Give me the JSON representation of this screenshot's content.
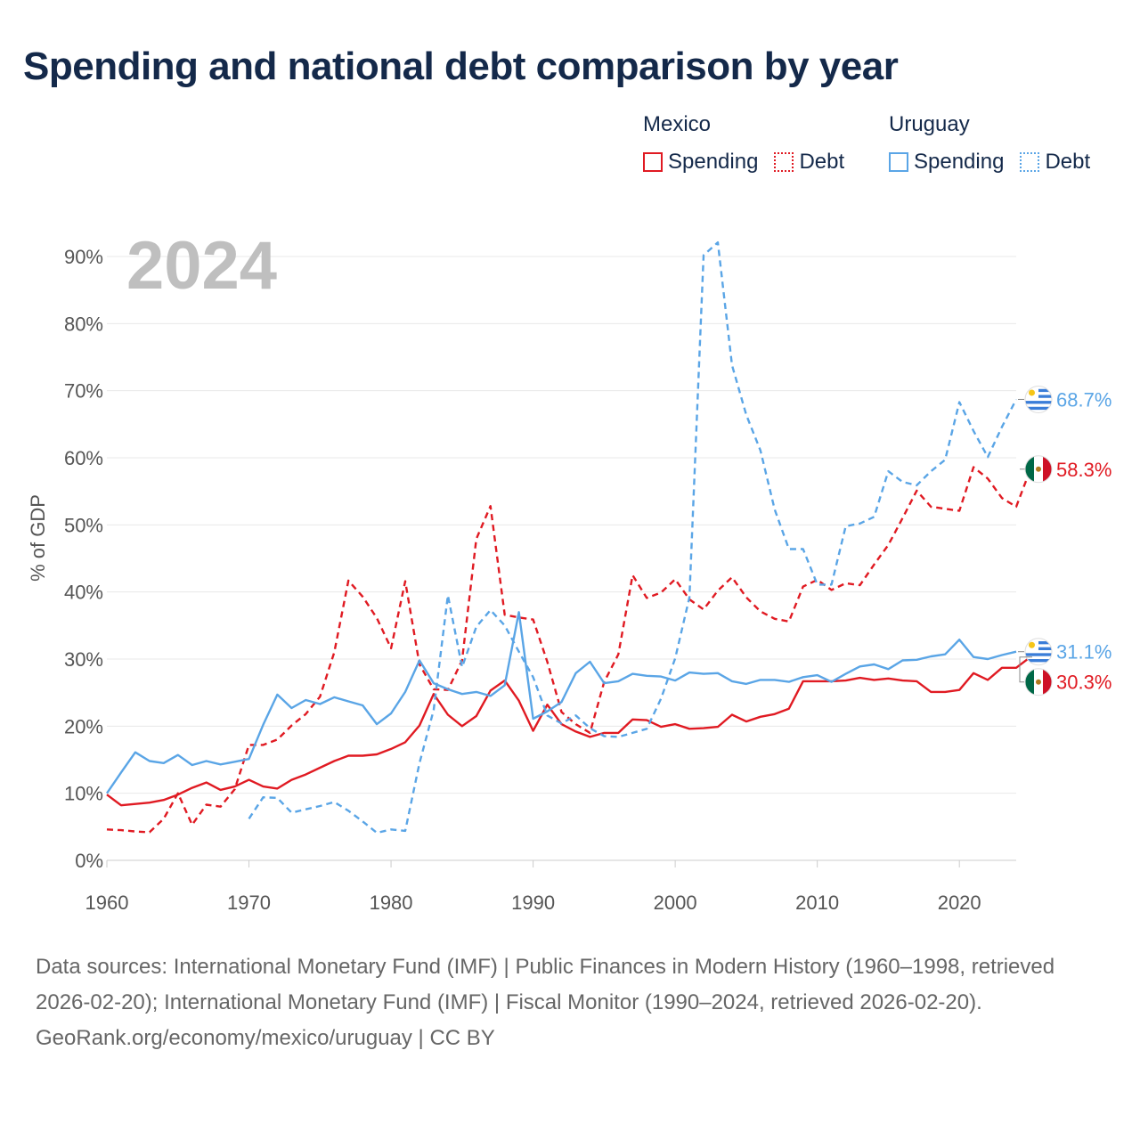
{
  "header": {
    "title": "Spending and national debt comparison by year"
  },
  "legend": {
    "groups": [
      {
        "name": "Mexico",
        "color": "#e01a22",
        "items": [
          "Spending",
          "Debt"
        ]
      },
      {
        "name": "Uruguay",
        "color": "#5aa5e6",
        "items": [
          "Spending",
          "Debt"
        ]
      }
    ]
  },
  "footer": {
    "sources": "Data sources: International Monetary Fund (IMF) | Public Finances in Modern History (1960–1998, retrieved 2026-02-20); International Monetary Fund (IMF) | Fiscal Monitor (1990–2024, retrieved 2026-02-20).",
    "credit": "GeoRank.org/economy/mexico/uruguay | CC BY"
  },
  "chart_data": {
    "type": "line",
    "year_label": "2024",
    "ylabel": "% of GDP",
    "xlabel": "",
    "xlim": [
      1960,
      2024
    ],
    "ylim": [
      0,
      90
    ],
    "x_ticks": [
      1960,
      1970,
      1980,
      1990,
      2000,
      2010,
      2020
    ],
    "y_ticks": [
      0,
      10,
      20,
      30,
      40,
      50,
      60,
      70,
      80,
      90
    ],
    "y_tick_labels": [
      "0%",
      "10%",
      "20%",
      "30%",
      "40%",
      "50%",
      "60%",
      "70%",
      "80%",
      "90%"
    ],
    "grid": true,
    "series": [
      {
        "name": "Mexico Spending",
        "country": "Mexico",
        "metric": "Spending",
        "color": "#e01a22",
        "dashed": false,
        "start_year": 1960,
        "end_label": "30.3%",
        "values": [
          9.8,
          8.2,
          8.4,
          8.6,
          9.0,
          9.8,
          10.8,
          11.6,
          10.5,
          11.0,
          12.0,
          11.0,
          10.7,
          12.0,
          12.8,
          13.8,
          14.8,
          15.6,
          15.6,
          15.8,
          16.6,
          17.6,
          20.1,
          24.8,
          21.7,
          20.0,
          21.5,
          25.3,
          26.8,
          23.8,
          19.3,
          23.2,
          20.3,
          19.2,
          18.4,
          19.0,
          19.0,
          21.0,
          20.9,
          19.9,
          20.3,
          19.6,
          19.7,
          19.9,
          21.7,
          20.7,
          21.4,
          21.8,
          22.6,
          26.7,
          26.7,
          26.7,
          26.8,
          27.2,
          26.9,
          27.1,
          26.8,
          26.7,
          25.1,
          25.1,
          25.4,
          27.9,
          26.9,
          28.7,
          28.7,
          30.3
        ]
      },
      {
        "name": "Mexico Debt",
        "country": "Mexico",
        "metric": "Debt",
        "color": "#e01a22",
        "dashed": true,
        "start_year": 1960,
        "end_label": "58.3%",
        "values": [
          4.6,
          4.5,
          4.3,
          4.2,
          6.2,
          10.0,
          5.3,
          8.3,
          8.0,
          10.6,
          17.2,
          17.2,
          18.0,
          20.1,
          21.8,
          24.4,
          31.0,
          41.7,
          39.3,
          36.1,
          31.6,
          41.6,
          29.2,
          25.5,
          25.4,
          29.8,
          47.9,
          52.8,
          36.6,
          36.2,
          35.9,
          29.6,
          22.1,
          20.3,
          19.0,
          26.6,
          30.7,
          42.5,
          39.1,
          39.9,
          41.9,
          38.9,
          37.4,
          40.2,
          42.2,
          39.2,
          37.1,
          36.0,
          35.6,
          40.8,
          41.8,
          40.3,
          41.3,
          41.0,
          44.1,
          47.0,
          51.0,
          55.1,
          52.7,
          52.4,
          52.1,
          58.6,
          56.9,
          54.0,
          52.7,
          58.3
        ]
      },
      {
        "name": "Uruguay Spending",
        "country": "Uruguay",
        "metric": "Spending",
        "color": "#5aa5e6",
        "dashed": false,
        "start_year": 1960,
        "end_label": "31.1%",
        "values": [
          10.0,
          13.1,
          16.1,
          14.8,
          14.5,
          15.7,
          14.2,
          14.8,
          14.3,
          14.7,
          15.1,
          20.2,
          24.7,
          22.7,
          23.9,
          23.3,
          24.3,
          23.7,
          23.1,
          20.3,
          21.9,
          25.1,
          29.8,
          26.4,
          25.5,
          24.8,
          25.1,
          24.5,
          26.1,
          37.0,
          21.1,
          22.2,
          23.6,
          27.9,
          29.6,
          26.4,
          26.7,
          27.8,
          27.5,
          27.4,
          26.8,
          28.0,
          27.8,
          27.9,
          26.7,
          26.3,
          26.9,
          26.9,
          26.6,
          27.3,
          27.6,
          26.6,
          27.8,
          28.9,
          29.2,
          28.5,
          29.8,
          29.9,
          30.4,
          30.7,
          32.9,
          30.3,
          30.0,
          30.6,
          31.1
        ]
      },
      {
        "name": "Uruguay Debt",
        "country": "Uruguay",
        "metric": "Debt",
        "color": "#5aa5e6",
        "dashed": true,
        "start_year": 1970,
        "end_label": "68.7%",
        "values": [
          6.2,
          9.4,
          9.3,
          7.1,
          7.6,
          8.1,
          8.7,
          7.4,
          5.8,
          4.1,
          4.6,
          4.4,
          14.5,
          22.4,
          39.5,
          28.8,
          34.8,
          37.3,
          35.0,
          31.1,
          27.3,
          21.6,
          20.4,
          21.6,
          19.7,
          18.5,
          18.4,
          19.0,
          19.6,
          24.1,
          30.1,
          39.2,
          90.2,
          92.1,
          73.8,
          66.4,
          61.1,
          52.3,
          46.4,
          46.4,
          41.1,
          41.1,
          49.8,
          50.2,
          51.2,
          58.0,
          56.4,
          55.9,
          58.0,
          59.7,
          68.3,
          64.0,
          60.1,
          64.6,
          68.7
        ]
      }
    ]
  }
}
